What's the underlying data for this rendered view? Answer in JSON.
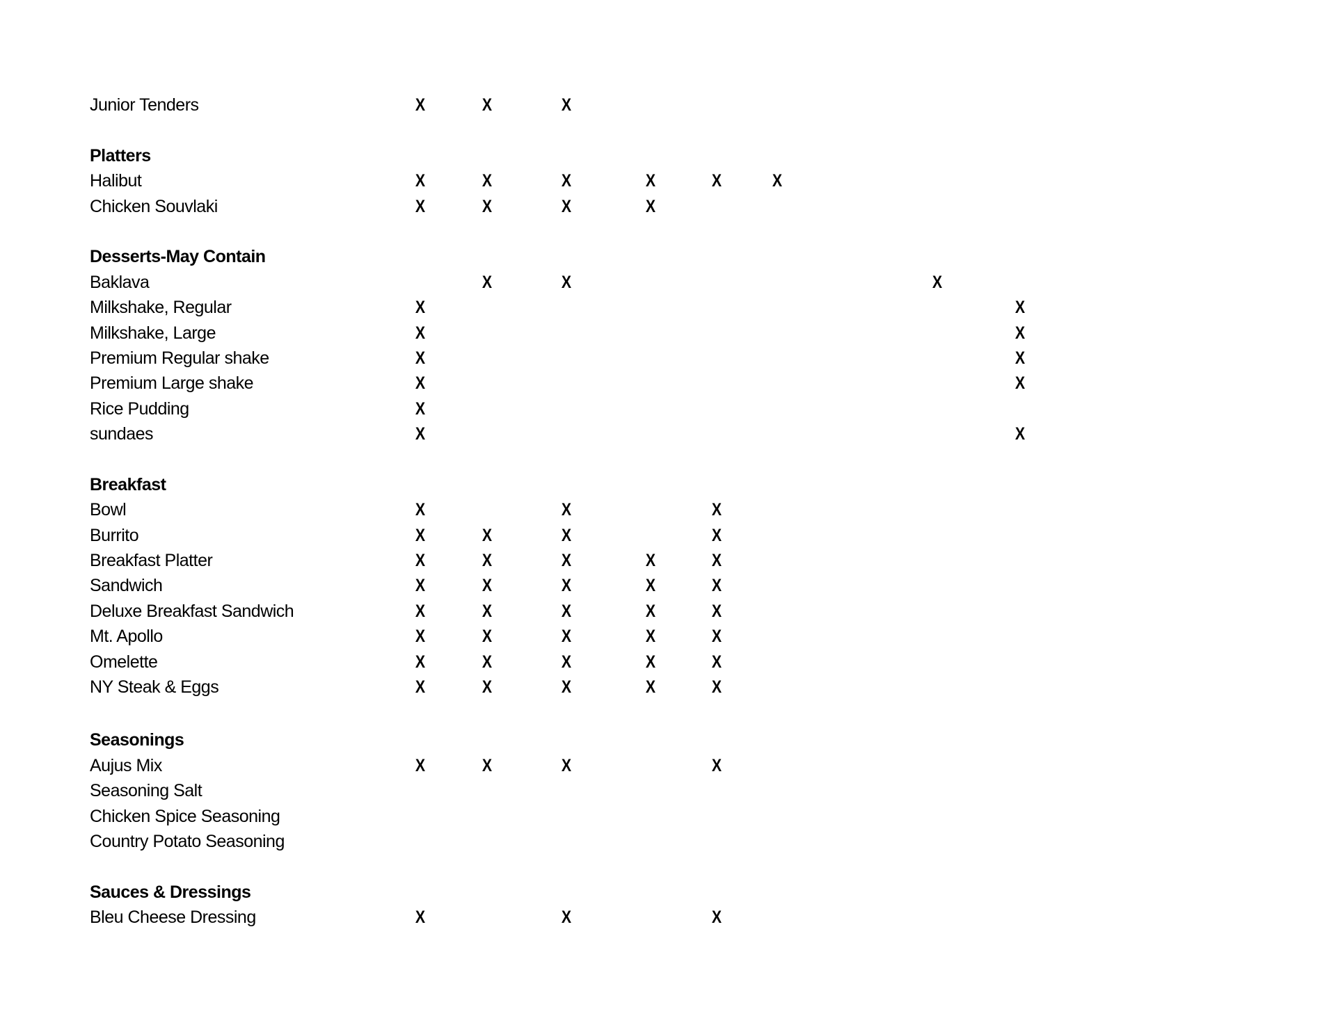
{
  "rows": [
    {
      "type": "item",
      "label": "Junior Tenders",
      "marks": [
        0,
        1,
        2
      ]
    },
    {
      "type": "blank"
    },
    {
      "type": "heading",
      "label": "Platters"
    },
    {
      "type": "item",
      "label": "Halibut",
      "marks": [
        0,
        1,
        2,
        3,
        4,
        5
      ]
    },
    {
      "type": "item",
      "label": "Chicken Souvlaki",
      "marks": [
        0,
        1,
        2,
        3
      ]
    },
    {
      "type": "blank"
    },
    {
      "type": "heading",
      "label": "Desserts-May Contain"
    },
    {
      "type": "item",
      "label": "Baklava",
      "marks": [
        1,
        2,
        6
      ]
    },
    {
      "type": "item",
      "label": "Milkshake, Regular",
      "marks": [
        0,
        7
      ]
    },
    {
      "type": "item",
      "label": "Milkshake, Large",
      "marks": [
        0,
        7
      ]
    },
    {
      "type": "item",
      "label": "Premium Regular shake",
      "marks": [
        0,
        7
      ]
    },
    {
      "type": "item",
      "label": "Premium Large shake",
      "marks": [
        0,
        7
      ]
    },
    {
      "type": "item",
      "label": "Rice Pudding",
      "marks": [
        0
      ]
    },
    {
      "type": "item",
      "label": "sundaes",
      "marks": [
        0,
        7
      ]
    },
    {
      "type": "blank"
    },
    {
      "type": "heading",
      "label": "Breakfast"
    },
    {
      "type": "item",
      "label": "Bowl",
      "marks": [
        0,
        2,
        4
      ]
    },
    {
      "type": "item",
      "label": "Burrito",
      "marks": [
        0,
        1,
        2,
        4
      ]
    },
    {
      "type": "item",
      "label": "Breakfast Platter",
      "marks": [
        0,
        1,
        2,
        3,
        4
      ]
    },
    {
      "type": "item",
      "label": "Sandwich",
      "marks": [
        0,
        1,
        2,
        3,
        4
      ]
    },
    {
      "type": "item",
      "label": "Deluxe Breakfast Sandwich",
      "marks": [
        0,
        1,
        2,
        3,
        4
      ]
    },
    {
      "type": "item",
      "label": "Mt. Apollo",
      "marks": [
        0,
        1,
        2,
        3,
        4
      ]
    },
    {
      "type": "item",
      "label": "Omelette",
      "marks": [
        0,
        1,
        2,
        3,
        4
      ]
    },
    {
      "type": "item",
      "label": "NY Steak & Eggs",
      "marks": [
        0,
        1,
        2,
        3,
        4
      ]
    },
    {
      "type": "blank",
      "extra": true
    },
    {
      "type": "heading",
      "label": "Seasonings"
    },
    {
      "type": "item",
      "label": "Aujus Mix",
      "marks": [
        0,
        1,
        2,
        4
      ]
    },
    {
      "type": "item",
      "label": "Seasoning Salt",
      "marks": []
    },
    {
      "type": "item",
      "label": "Chicken Spice Seasoning",
      "marks": []
    },
    {
      "type": "item",
      "label": "Country Potato Seasoning",
      "marks": []
    },
    {
      "type": "blank"
    },
    {
      "type": "heading",
      "label": "Sauces & Dressings"
    },
    {
      "type": "item",
      "label": "Bleu Cheese Dressing",
      "marks": [
        0,
        2,
        4
      ]
    }
  ],
  "mark_symbol": "X"
}
